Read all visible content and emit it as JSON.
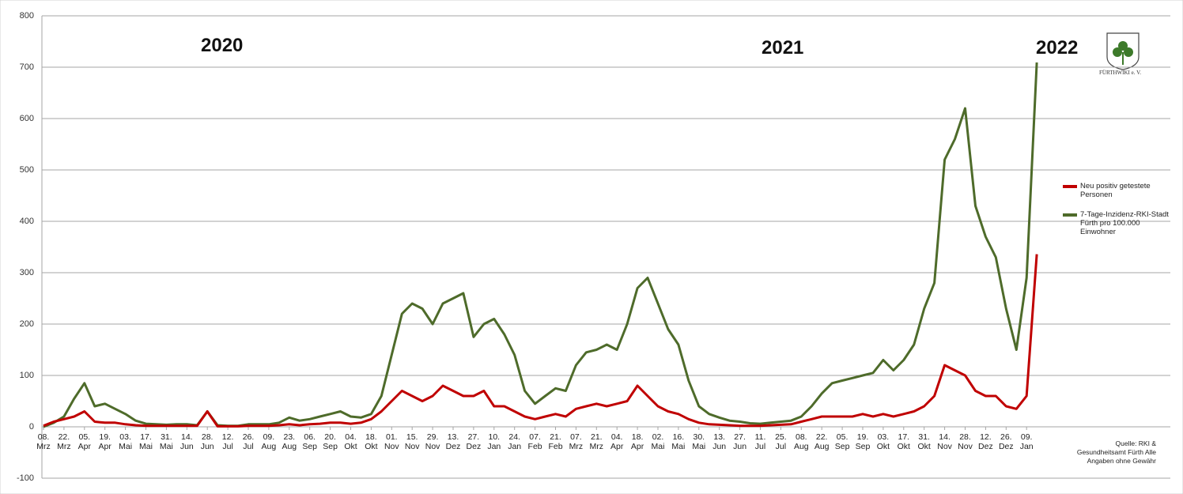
{
  "chart_data": {
    "type": "line",
    "categories": [
      "08. Mrz",
      null,
      "22. Mrz",
      null,
      "05. Apr",
      null,
      "19. Apr",
      null,
      "03. Mai",
      null,
      "17. Mai",
      null,
      "31. Mai",
      null,
      "14. Jun",
      null,
      "28. Jun",
      null,
      "12. Jul",
      null,
      "26. Jul",
      null,
      "09. Aug",
      null,
      "23. Aug",
      null,
      "06. Sep",
      null,
      "20. Sep",
      null,
      "04. Okt",
      null,
      "18. Okt",
      null,
      "01. Nov",
      null,
      "15. Nov",
      null,
      "29. Nov",
      null,
      "13. Dez",
      null,
      "27. Dez",
      null,
      "10. Jan",
      null,
      "24. Jan",
      null,
      "07. Feb",
      null,
      "21. Feb",
      null,
      "07. Mrz",
      null,
      "21. Mrz",
      null,
      "04. Apr",
      null,
      "18. Apr",
      null,
      "02. Mai",
      null,
      "16. Mai",
      null,
      "30. Mai",
      null,
      "13. Jun",
      null,
      "27. Jun",
      null,
      "11. Jul",
      null,
      "25. Jul",
      null,
      "08. Aug",
      null,
      "22. Aug",
      null,
      "05. Sep",
      null,
      "19. Sep",
      null,
      "03. Okt",
      null,
      "17. Okt",
      null,
      "31. Okt",
      null,
      "14. Nov",
      null,
      "28. Nov",
      null,
      "12. Dez",
      null,
      "26. Dez",
      null,
      "09. Jan",
      null
    ],
    "series": [
      {
        "name": "Neu positiv getestete Personen",
        "color": "#c00000",
        "values": [
          2,
          10,
          15,
          20,
          30,
          10,
          8,
          8,
          5,
          3,
          2,
          2,
          2,
          2,
          2,
          2,
          30,
          1,
          1,
          1,
          2,
          2,
          2,
          3,
          5,
          3,
          5,
          6,
          8,
          8,
          6,
          8,
          15,
          30,
          50,
          70,
          60,
          50,
          60,
          80,
          70,
          60,
          60,
          70,
          40,
          40,
          30,
          20,
          15,
          20,
          25,
          20,
          35,
          40,
          45,
          40,
          45,
          50,
          80,
          60,
          40,
          30,
          25,
          15,
          8,
          5,
          4,
          3,
          2,
          2,
          2,
          3,
          4,
          5,
          10,
          15,
          20,
          20,
          20,
          20,
          25,
          20,
          25,
          20,
          25,
          30,
          40,
          60,
          120,
          110,
          100,
          70,
          60,
          60,
          40,
          35,
          60,
          336
        ]
      },
      {
        "name": "7-Tage-Inzidenz-RKI-Stadt Fürth pro 100.000 Einwohner",
        "color": "#4e6b2a",
        "values": [
          0,
          8,
          20,
          55,
          85,
          40,
          45,
          35,
          25,
          12,
          6,
          5,
          4,
          5,
          5,
          3,
          30,
          3,
          2,
          2,
          5,
          5,
          5,
          8,
          18,
          12,
          15,
          20,
          25,
          30,
          20,
          18,
          25,
          60,
          140,
          220,
          240,
          230,
          200,
          240,
          250,
          260,
          175,
          200,
          210,
          180,
          140,
          70,
          45,
          60,
          75,
          70,
          120,
          145,
          150,
          160,
          150,
          200,
          270,
          290,
          240,
          190,
          160,
          90,
          40,
          25,
          18,
          12,
          10,
          7,
          6,
          8,
          10,
          12,
          20,
          40,
          65,
          85,
          90,
          95,
          100,
          105,
          130,
          110,
          130,
          160,
          230,
          280,
          520,
          560,
          620,
          430,
          370,
          330,
          230,
          150,
          290,
          709
        ]
      }
    ],
    "ylim": [
      -100,
      800
    ],
    "yticks": [
      -100,
      0,
      100,
      200,
      300,
      400,
      500,
      600,
      700,
      800
    ],
    "grid": true,
    "legend": "right",
    "annotations": [
      "2020",
      "2021",
      "2022"
    ],
    "source": "Quelle: RKI & Gesundheitsamt Fürth Alle Angaben ohne Gewähr",
    "logo": "FÜRTHWIKI e. V."
  }
}
